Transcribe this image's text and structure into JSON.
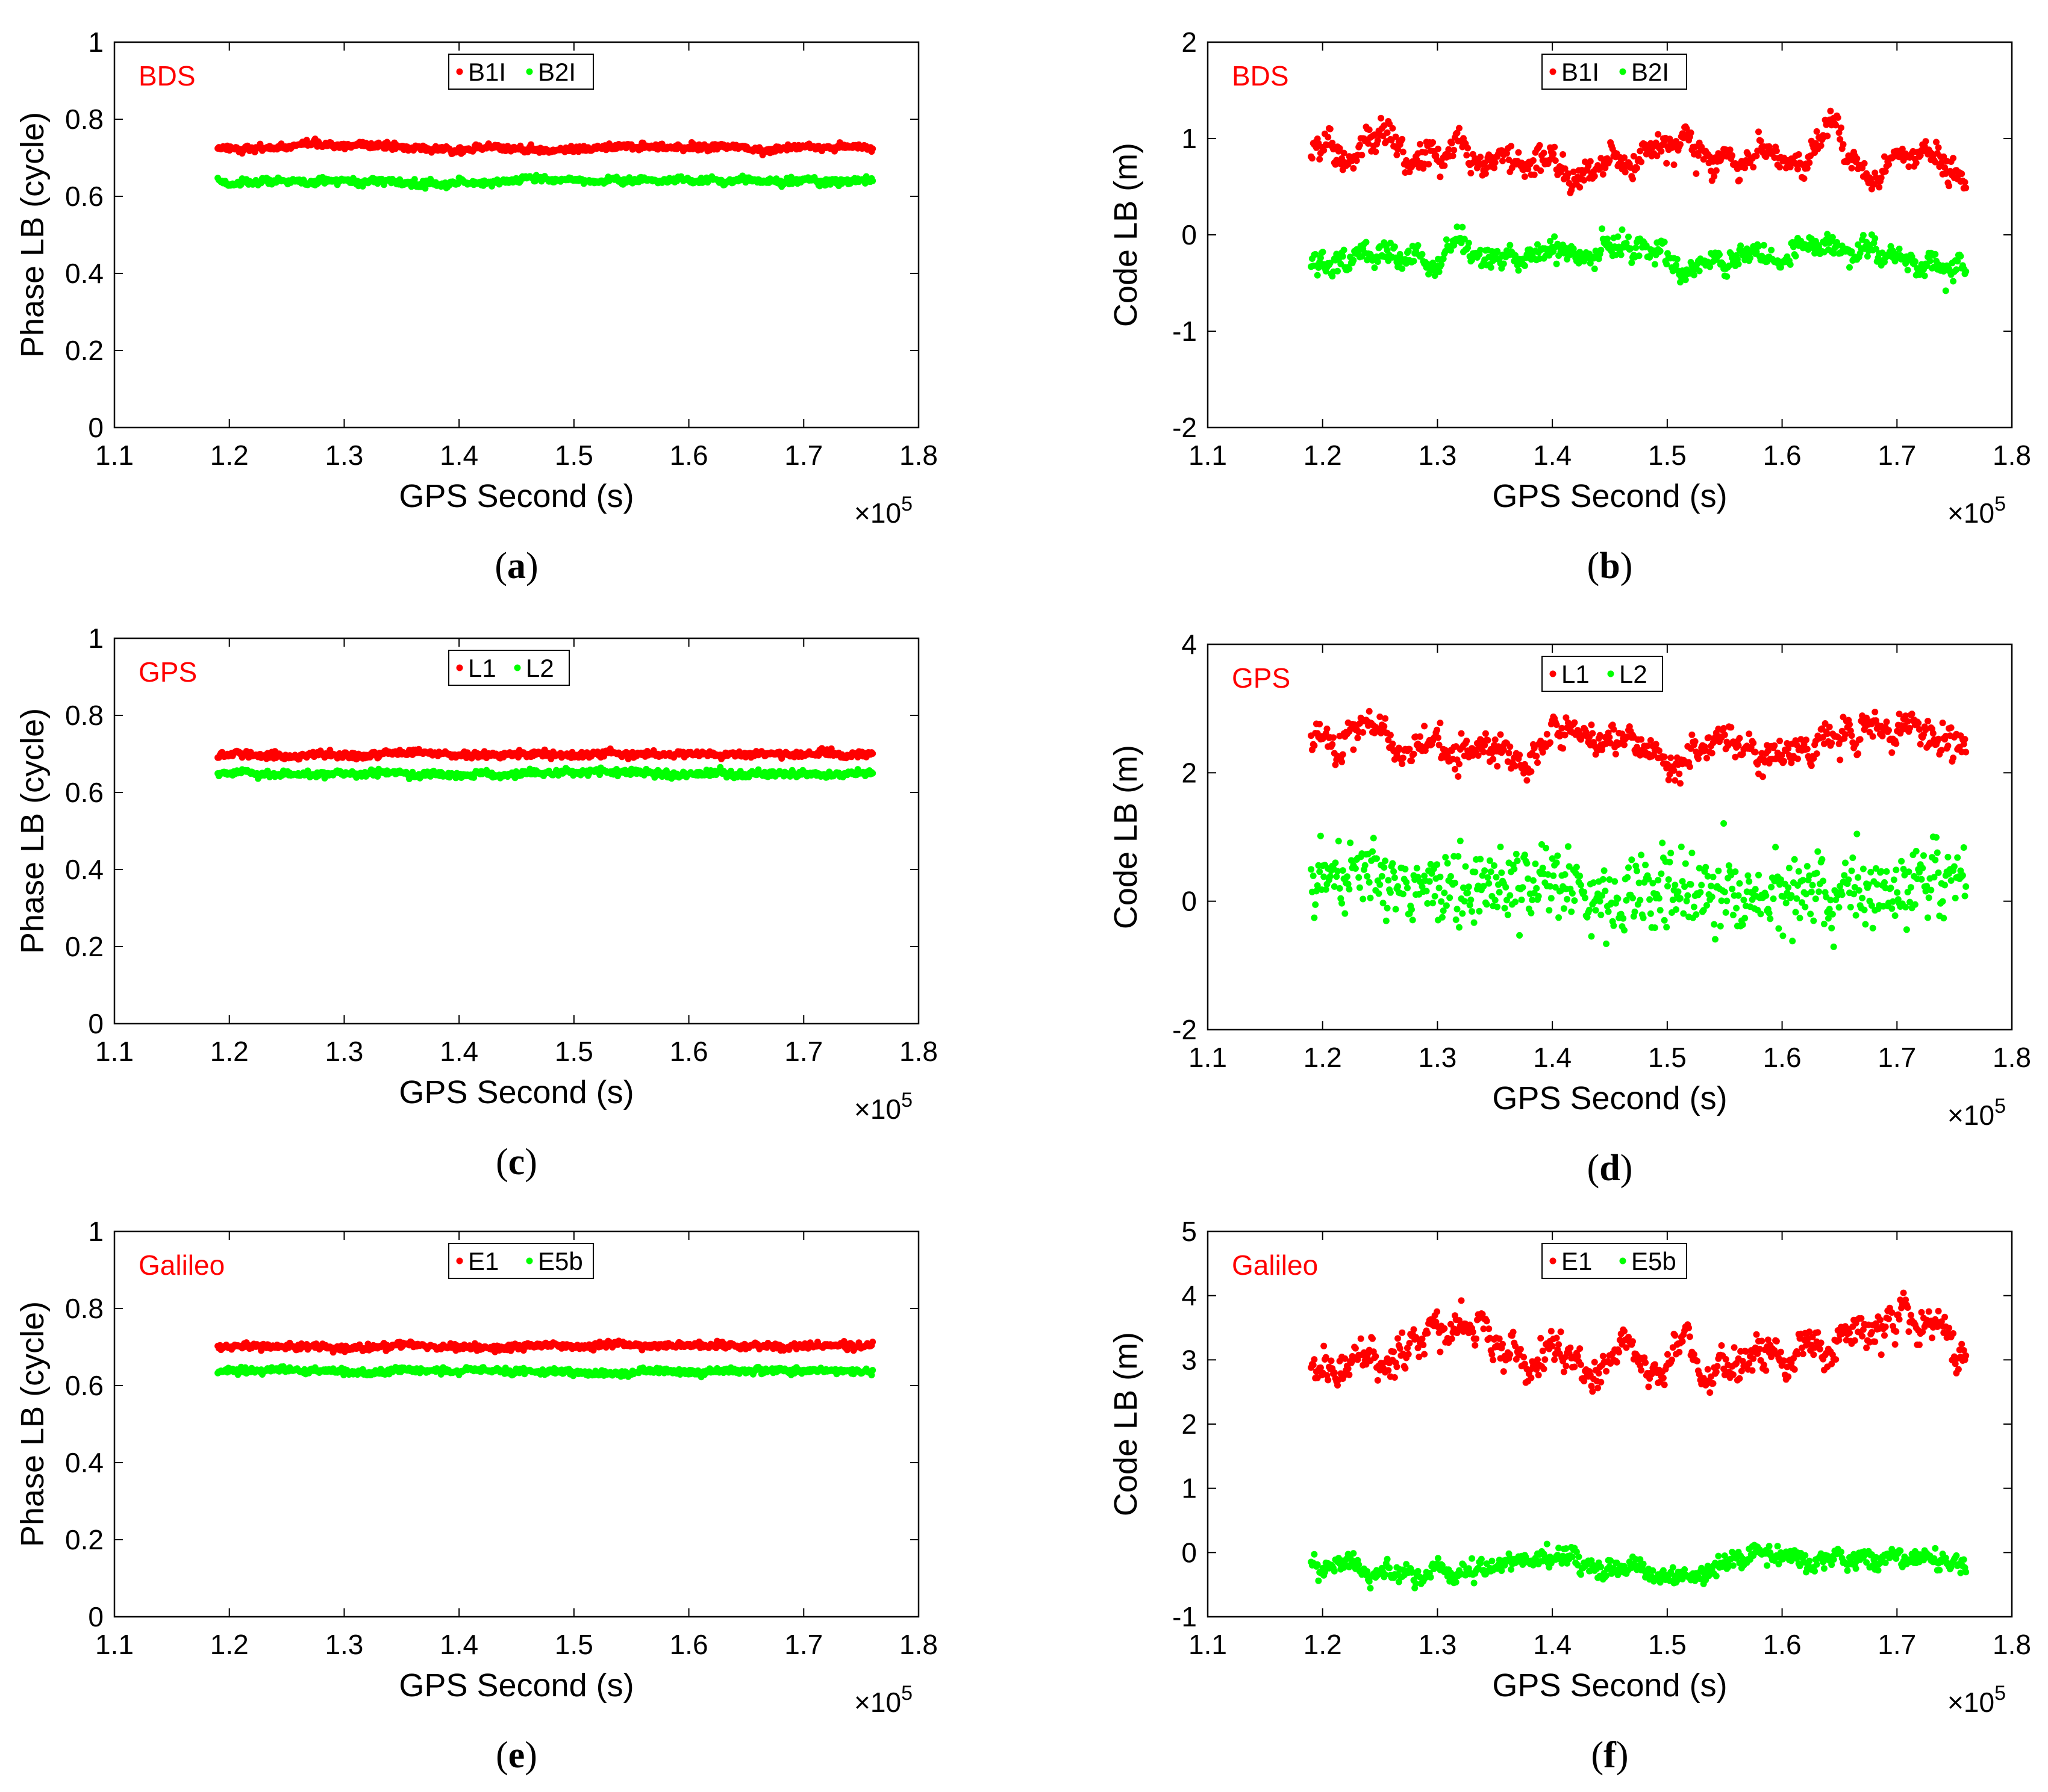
{
  "figure": {
    "x_multiplier_base": "×10",
    "x_multiplier_exp": "5"
  },
  "colors": {
    "series1": "#ff0000",
    "series2": "#00ff00",
    "tag": "#ff0000"
  },
  "chart_data": [
    {
      "id": "a",
      "type": "scatter",
      "caption": "a",
      "system": "BDS",
      "title": "",
      "xlabel": "GPS Second (s)",
      "ylabel": "Phase LB (cycle)",
      "xlim": [
        1.1,
        1.8
      ],
      "ylim": [
        0,
        1
      ],
      "xticks": [
        "1.1",
        "1.2",
        "1.3",
        "1.4",
        "1.5",
        "1.6",
        "1.7",
        "1.8"
      ],
      "yticks": [
        "0",
        "0.2",
        "0.4",
        "0.6",
        "0.8",
        "1"
      ],
      "x_range_data": [
        1.19,
        1.76
      ],
      "legend": [
        "B1I",
        "B2I"
      ],
      "series": [
        {
          "name": "B1I",
          "mean": 0.725,
          "noise": 0.004,
          "wander": 0.004
        },
        {
          "name": "B2I",
          "mean": 0.638,
          "noise": 0.004,
          "wander": 0.005
        }
      ]
    },
    {
      "id": "b",
      "type": "scatter",
      "caption": "b",
      "system": "BDS",
      "title": "",
      "xlabel": "GPS Second (s)",
      "ylabel": "Code LB (m)",
      "xlim": [
        1.1,
        1.8
      ],
      "ylim": [
        -2,
        2
      ],
      "xticks": [
        "1.1",
        "1.2",
        "1.3",
        "1.4",
        "1.5",
        "1.6",
        "1.7",
        "1.8"
      ],
      "yticks": [
        "-2",
        "-1",
        "0",
        "1",
        "2"
      ],
      "x_range_data": [
        1.19,
        1.76
      ],
      "legend": [
        "B1I",
        "B2I"
      ],
      "series": [
        {
          "name": "B1I",
          "mean": 0.8,
          "noise": 0.06,
          "wander": 0.14
        },
        {
          "name": "B2I",
          "mean": -0.25,
          "noise": 0.05,
          "wander": 0.1
        }
      ]
    },
    {
      "id": "c",
      "type": "scatter",
      "caption": "c",
      "system": "GPS",
      "title": "",
      "xlabel": "GPS Second (s)",
      "ylabel": "Phase LB (cycle)",
      "xlim": [
        1.1,
        1.8
      ],
      "ylim": [
        0,
        1
      ],
      "xticks": [
        "1.1",
        "1.2",
        "1.3",
        "1.4",
        "1.5",
        "1.6",
        "1.7",
        "1.8"
      ],
      "yticks": [
        "0",
        "0.2",
        "0.4",
        "0.6",
        "0.8",
        "1"
      ],
      "x_range_data": [
        1.19,
        1.76
      ],
      "legend": [
        "L1",
        "L2"
      ],
      "series": [
        {
          "name": "L1",
          "mean": 0.697,
          "noise": 0.004,
          "wander": 0.003
        },
        {
          "name": "L2",
          "mean": 0.648,
          "noise": 0.004,
          "wander": 0.003
        }
      ]
    },
    {
      "id": "d",
      "type": "scatter",
      "caption": "d",
      "system": "GPS",
      "title": "",
      "xlabel": "GPS Second (s)",
      "ylabel": "Code LB (m)",
      "xlim": [
        1.1,
        1.8
      ],
      "ylim": [
        -2,
        4
      ],
      "xticks": [
        "1.1",
        "1.2",
        "1.3",
        "1.4",
        "1.5",
        "1.6",
        "1.7",
        "1.8"
      ],
      "yticks": [
        "-2",
        "0",
        "2",
        "4"
      ],
      "x_range_data": [
        1.19,
        1.76
      ],
      "legend": [
        "L1",
        "L2"
      ],
      "series": [
        {
          "name": "L1",
          "mean": 2.5,
          "noise": 0.1,
          "wander": 0.2
        },
        {
          "name": "L2",
          "mean": 0.25,
          "noise": 0.3,
          "wander": 0.12
        }
      ]
    },
    {
      "id": "e",
      "type": "scatter",
      "caption": "e",
      "system": "Galileo",
      "title": "",
      "xlabel": "GPS Second (s)",
      "ylabel": "Phase LB (cycle)",
      "xlim": [
        1.1,
        1.8
      ],
      "ylim": [
        0,
        1
      ],
      "xticks": [
        "1.1",
        "1.2",
        "1.3",
        "1.4",
        "1.5",
        "1.6",
        "1.7",
        "1.8"
      ],
      "yticks": [
        "0",
        "0.2",
        "0.4",
        "0.6",
        "0.8",
        "1"
      ],
      "x_range_data": [
        1.19,
        1.76
      ],
      "legend": [
        "E1",
        "E5b"
      ],
      "series": [
        {
          "name": "E1",
          "mean": 0.702,
          "noise": 0.004,
          "wander": 0.003
        },
        {
          "name": "E5b",
          "mean": 0.638,
          "noise": 0.004,
          "wander": 0.003
        }
      ]
    },
    {
      "id": "f",
      "type": "scatter",
      "caption": "f",
      "system": "Galileo",
      "title": "",
      "xlabel": "GPS Second (s)",
      "ylabel": "Code LB (m)",
      "xlim": [
        1.1,
        1.8
      ],
      "ylim": [
        -1,
        5
      ],
      "xticks": [
        "1.1",
        "1.2",
        "1.3",
        "1.4",
        "1.5",
        "1.6",
        "1.7",
        "1.8"
      ],
      "yticks": [
        "-1",
        "0",
        "1",
        "2",
        "3",
        "4",
        "5"
      ],
      "x_range_data": [
        1.19,
        1.76
      ],
      "legend": [
        "E1",
        "E5b"
      ],
      "series": [
        {
          "name": "E1",
          "mean": 3.05,
          "noise": 0.1,
          "wander": 0.28
        },
        {
          "name": "E5b",
          "mean": -0.2,
          "noise": 0.07,
          "wander": 0.1
        }
      ]
    }
  ]
}
